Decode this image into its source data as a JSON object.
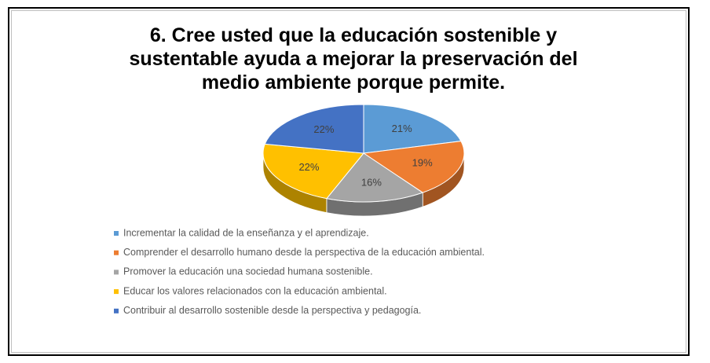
{
  "chart_data": {
    "type": "pie",
    "title": "6. Cree usted que la educación sostenible y sustentable ayuda a mejorar la preservación del medio ambiente porque permite.",
    "categories": [
      "Incrementar la calidad de la enseñanza y el aprendizaje.",
      "Comprender el desarrollo humano desde la perspectiva de la educación ambiental.",
      "Promover la educación una sociedad humana sostenible.",
      "Educar los valores relacionados con la educación ambiental.",
      "Contribuir al desarrollo sostenible desde la perspectiva y pedagogía."
    ],
    "values": [
      21,
      19,
      16,
      22,
      22
    ],
    "value_labels": [
      "21%",
      "19%",
      "16%",
      "22%",
      "22%"
    ],
    "colors": [
      "#5b9bd5",
      "#ed7d31",
      "#a5a5a5",
      "#ffc000",
      "#4472c4"
    ],
    "legend": "bottom"
  }
}
